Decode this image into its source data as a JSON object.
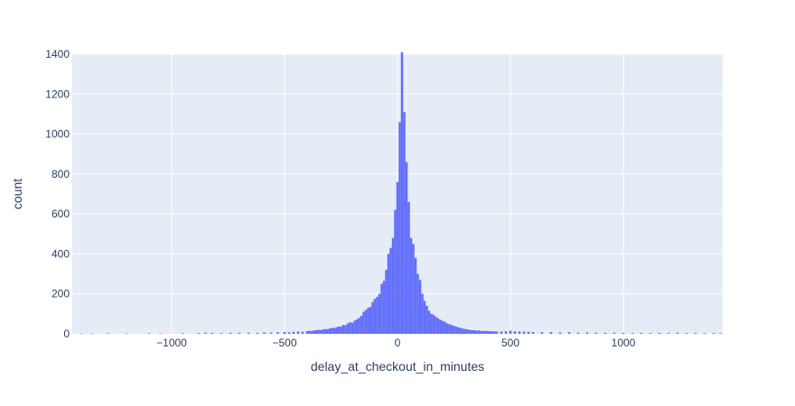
{
  "chart_data": {
    "type": "histogram",
    "title": "",
    "xlabel": "delay_at_checkout_in_minutes",
    "ylabel": "count",
    "xlim": [
      -1440,
      1440
    ],
    "ylim": [
      0,
      1400
    ],
    "bin_width": 10,
    "xticks": [
      -1000,
      -500,
      0,
      500,
      1000
    ],
    "xtick_labels": [
      "−1000",
      "−500",
      "0",
      "500",
      "1000"
    ],
    "yticks": [
      0,
      200,
      400,
      600,
      800,
      1000,
      1200,
      1400
    ],
    "ytick_labels": [
      "0",
      "200",
      "400",
      "600",
      "800",
      "1000",
      "1200",
      "1400"
    ],
    "grid": true,
    "colors": {
      "bar": "#636efa",
      "plot_bg": "#e5ecf6",
      "grid": "#ffffff",
      "text": "#2a3f5f"
    },
    "bins": [
      {
        "x": -1400,
        "count": 2
      },
      {
        "x": -1350,
        "count": 1
      },
      {
        "x": -1280,
        "count": 3
      },
      {
        "x": -1200,
        "count": 2
      },
      {
        "x": -1100,
        "count": 3
      },
      {
        "x": -1050,
        "count": 2
      },
      {
        "x": -950,
        "count": 3
      },
      {
        "x": -880,
        "count": 4
      },
      {
        "x": -850,
        "count": 6
      },
      {
        "x": -820,
        "count": 5
      },
      {
        "x": -780,
        "count": 4
      },
      {
        "x": -740,
        "count": 5
      },
      {
        "x": -700,
        "count": 5
      },
      {
        "x": -660,
        "count": 6
      },
      {
        "x": -620,
        "count": 5
      },
      {
        "x": -590,
        "count": 7
      },
      {
        "x": -560,
        "count": 6
      },
      {
        "x": -530,
        "count": 8
      },
      {
        "x": -500,
        "count": 9
      },
      {
        "x": -480,
        "count": 8
      },
      {
        "x": -460,
        "count": 10
      },
      {
        "x": -440,
        "count": 12
      },
      {
        "x": -420,
        "count": 11
      },
      {
        "x": -400,
        "count": 14
      },
      {
        "x": -390,
        "count": 15
      },
      {
        "x": -380,
        "count": 14
      },
      {
        "x": -370,
        "count": 17
      },
      {
        "x": -360,
        "count": 18
      },
      {
        "x": -350,
        "count": 20
      },
      {
        "x": -340,
        "count": 19
      },
      {
        "x": -330,
        "count": 22
      },
      {
        "x": -320,
        "count": 24
      },
      {
        "x": -310,
        "count": 23
      },
      {
        "x": -300,
        "count": 27
      },
      {
        "x": -290,
        "count": 30
      },
      {
        "x": -280,
        "count": 29
      },
      {
        "x": -270,
        "count": 33
      },
      {
        "x": -260,
        "count": 37
      },
      {
        "x": -250,
        "count": 36
      },
      {
        "x": -240,
        "count": 45
      },
      {
        "x": -230,
        "count": 43
      },
      {
        "x": -220,
        "count": 52
      },
      {
        "x": -210,
        "count": 58
      },
      {
        "x": -200,
        "count": 55
      },
      {
        "x": -190,
        "count": 66
      },
      {
        "x": -180,
        "count": 72
      },
      {
        "x": -170,
        "count": 80
      },
      {
        "x": -160,
        "count": 90
      },
      {
        "x": -150,
        "count": 110
      },
      {
        "x": -140,
        "count": 120
      },
      {
        "x": -130,
        "count": 130
      },
      {
        "x": -120,
        "count": 135
      },
      {
        "x": -110,
        "count": 160
      },
      {
        "x": -100,
        "count": 175
      },
      {
        "x": -90,
        "count": 185
      },
      {
        "x": -80,
        "count": 200
      },
      {
        "x": -70,
        "count": 250
      },
      {
        "x": -60,
        "count": 265
      },
      {
        "x": -50,
        "count": 320
      },
      {
        "x": -40,
        "count": 400
      },
      {
        "x": -30,
        "count": 430
      },
      {
        "x": -20,
        "count": 480
      },
      {
        "x": -10,
        "count": 620
      },
      {
        "x": 0,
        "count": 760
      },
      {
        "x": 10,
        "count": 1060
      },
      {
        "x": 20,
        "count": 1410
      },
      {
        "x": 30,
        "count": 1110
      },
      {
        "x": 40,
        "count": 860
      },
      {
        "x": 50,
        "count": 660
      },
      {
        "x": 60,
        "count": 480
      },
      {
        "x": 70,
        "count": 450
      },
      {
        "x": 80,
        "count": 380
      },
      {
        "x": 90,
        "count": 300
      },
      {
        "x": 100,
        "count": 270
      },
      {
        "x": 110,
        "count": 200
      },
      {
        "x": 120,
        "count": 165
      },
      {
        "x": 130,
        "count": 140
      },
      {
        "x": 140,
        "count": 115
      },
      {
        "x": 150,
        "count": 100
      },
      {
        "x": 160,
        "count": 95
      },
      {
        "x": 170,
        "count": 85
      },
      {
        "x": 180,
        "count": 78
      },
      {
        "x": 190,
        "count": 70
      },
      {
        "x": 200,
        "count": 65
      },
      {
        "x": 210,
        "count": 60
      },
      {
        "x": 220,
        "count": 52
      },
      {
        "x": 230,
        "count": 48
      },
      {
        "x": 240,
        "count": 44
      },
      {
        "x": 250,
        "count": 40
      },
      {
        "x": 260,
        "count": 36
      },
      {
        "x": 270,
        "count": 32
      },
      {
        "x": 280,
        "count": 29
      },
      {
        "x": 290,
        "count": 26
      },
      {
        "x": 300,
        "count": 24
      },
      {
        "x": 310,
        "count": 22
      },
      {
        "x": 320,
        "count": 20
      },
      {
        "x": 330,
        "count": 19
      },
      {
        "x": 340,
        "count": 18
      },
      {
        "x": 350,
        "count": 16
      },
      {
        "x": 360,
        "count": 17
      },
      {
        "x": 370,
        "count": 15
      },
      {
        "x": 380,
        "count": 14
      },
      {
        "x": 390,
        "count": 15
      },
      {
        "x": 400,
        "count": 13
      },
      {
        "x": 410,
        "count": 14
      },
      {
        "x": 420,
        "count": 12
      },
      {
        "x": 430,
        "count": 13
      },
      {
        "x": 440,
        "count": 11
      },
      {
        "x": 460,
        "count": 12
      },
      {
        "x": 480,
        "count": 13
      },
      {
        "x": 500,
        "count": 16
      },
      {
        "x": 520,
        "count": 13
      },
      {
        "x": 540,
        "count": 12
      },
      {
        "x": 560,
        "count": 11
      },
      {
        "x": 580,
        "count": 10
      },
      {
        "x": 600,
        "count": 9
      },
      {
        "x": 640,
        "count": 8
      },
      {
        "x": 680,
        "count": 9
      },
      {
        "x": 720,
        "count": 7
      },
      {
        "x": 760,
        "count": 8
      },
      {
        "x": 800,
        "count": 6
      },
      {
        "x": 840,
        "count": 7
      },
      {
        "x": 880,
        "count": 6
      },
      {
        "x": 920,
        "count": 5
      },
      {
        "x": 960,
        "count": 6
      },
      {
        "x": 1000,
        "count": 5
      },
      {
        "x": 1040,
        "count": 4
      },
      {
        "x": 1080,
        "count": 5
      },
      {
        "x": 1120,
        "count": 4
      },
      {
        "x": 1160,
        "count": 5
      },
      {
        "x": 1200,
        "count": 4
      },
      {
        "x": 1240,
        "count": 6
      },
      {
        "x": 1280,
        "count": 4
      },
      {
        "x": 1320,
        "count": 5
      },
      {
        "x": 1360,
        "count": 3
      },
      {
        "x": 1400,
        "count": 4
      },
      {
        "x": 1430,
        "count": 3
      }
    ]
  }
}
